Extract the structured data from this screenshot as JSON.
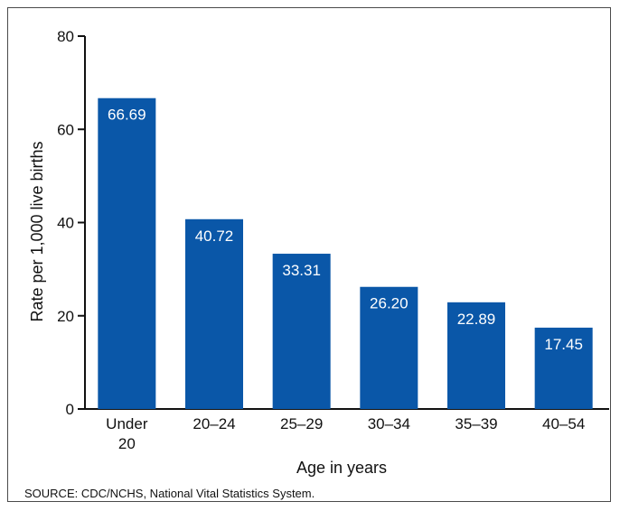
{
  "chart_data": {
    "type": "bar",
    "categories": [
      [
        "Under",
        "20"
      ],
      [
        "20–24"
      ],
      [
        "25–29"
      ],
      [
        "30–34"
      ],
      [
        "35–39"
      ],
      [
        "40–54"
      ]
    ],
    "values": [
      66.69,
      40.72,
      33.31,
      26.2,
      22.89,
      17.45
    ],
    "value_labels": [
      "66.69",
      "40.72",
      "33.31",
      "26.20",
      "22.89",
      "17.45"
    ],
    "xlabel": "Age in years",
    "ylabel": "Rate per 1,000 live births",
    "ylim": [
      0,
      80
    ],
    "yticks": [
      0,
      20,
      40,
      60,
      80
    ],
    "grid": false,
    "bar_color": "#0a57a8",
    "label_color": "#ffffff"
  },
  "source": "SOURCE: CDC/NCHS, National Vital Statistics System."
}
